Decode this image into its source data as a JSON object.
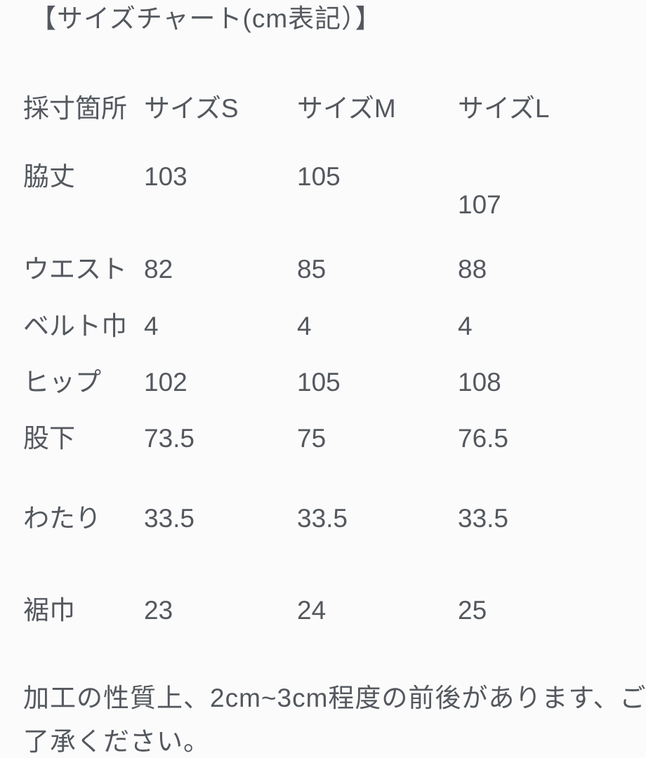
{
  "title": "【サイズチャート(cm表記）】",
  "table": {
    "headers": [
      "採寸箇所",
      "サイズS",
      "サイズM",
      "サイズL"
    ],
    "rows": [
      {
        "label": "脇丈",
        "s": "103",
        "m": "105",
        "l": "107"
      },
      {
        "label": "ウエスト",
        "s": "82",
        "m": "85",
        "l": "88"
      },
      {
        "label": "ベルト巾",
        "s": "4",
        "m": "4",
        "l": "4"
      },
      {
        "label": "ヒップ",
        "s": "102",
        "m": "105",
        "l": "108"
      },
      {
        "label": "股下",
        "s": "73.5",
        "m": "75",
        "l": "76.5"
      },
      {
        "label": "わたり",
        "s": "33.5",
        "m": "33.5",
        "l": "33.5"
      },
      {
        "label": "裾巾",
        "s": "23",
        "m": "24",
        "l": "25"
      }
    ]
  },
  "note": {
    "line1": "加工の性質上、2cm~3cm程度の前後があります、ご",
    "line2": "了承ください。"
  },
  "colors": {
    "text": "#54585e",
    "background": "#fbfbfb"
  }
}
